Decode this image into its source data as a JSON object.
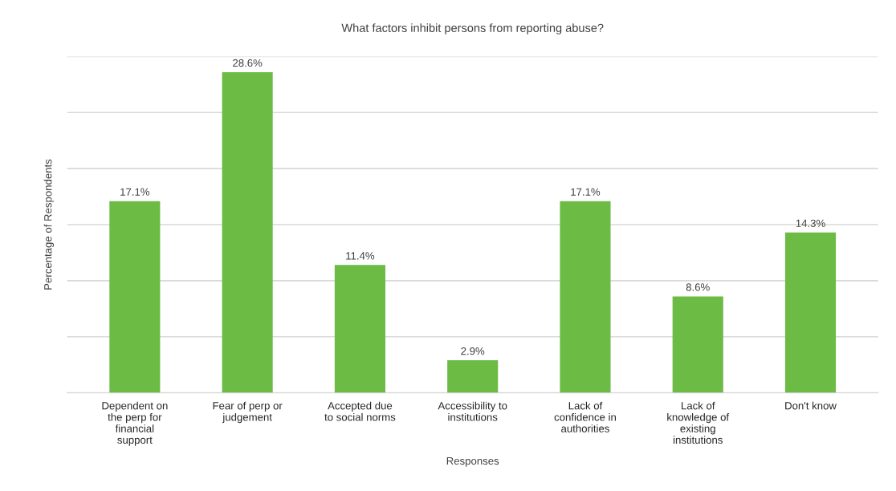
{
  "chart_data": {
    "type": "bar",
    "title": "What factors inhibit persons from reporting abuse?",
    "xlabel": "Responses",
    "ylabel": "Percentage of Respondents",
    "categories": [
      "Dependent on the perp for financial support",
      "Fear of perp or judgement",
      "Accepted due to social norms",
      "Accessibility to institutions",
      "Lack of confidence in authorities",
      "Lack of knowledge of existing institutions",
      "Don't know"
    ],
    "values": [
      17.1,
      28.6,
      11.4,
      2.9,
      17.1,
      8.6,
      14.3
    ],
    "value_labels": [
      "17.1%",
      "28.6%",
      "11.4%",
      "2.9%",
      "17.1%",
      "8.6%",
      "14.3%"
    ],
    "color": "#6cbb45",
    "ylim": [
      0,
      30
    ],
    "yticks": [
      {
        "value": 0,
        "label": null
      },
      {
        "value": 5,
        "label": null
      },
      {
        "value": 10,
        "label": null
      },
      {
        "value": 15,
        "label": null
      },
      {
        "value": 20,
        "label": null
      },
      {
        "value": 25,
        "label": null
      },
      {
        "value": 30,
        "label": null
      }
    ],
    "tick_labels": "x",
    "grid": "y"
  }
}
